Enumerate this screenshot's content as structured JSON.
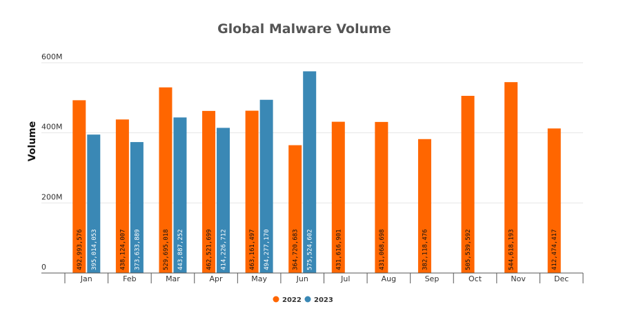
{
  "chart_data": {
    "type": "bar",
    "title": "Global Malware Volume",
    "ylabel": "Volume",
    "xlabel": "",
    "ylim": [
      0,
      600000000
    ],
    "yticks": [
      {
        "value": 0,
        "label": "0"
      },
      {
        "value": 200000000,
        "label": "200M"
      },
      {
        "value": 400000000,
        "label": "400M"
      },
      {
        "value": 600000000,
        "label": "600M"
      }
    ],
    "grid": true,
    "legend_position": "bottom",
    "categories": [
      "Jan",
      "Feb",
      "Mar",
      "Apr",
      "May",
      "Jun",
      "Jul",
      "Aug",
      "Sep",
      "Oct",
      "Nov",
      "Dec"
    ],
    "series": [
      {
        "name": "2022",
        "color": "#ff6600",
        "values": [
          492993576,
          438124007,
          529695018,
          462521699,
          463161497,
          364720683,
          431616901,
          431068698,
          382118476,
          505539592,
          544618193,
          412474417
        ],
        "labels": [
          "492,993,576",
          "438,124,007",
          "529,695,018",
          "462,521,699",
          "463,161,497",
          "364,720,683",
          "431,616,901",
          "431,068,698",
          "382,118,476",
          "505,539,592",
          "544,618,193",
          "412,474,417"
        ]
      },
      {
        "name": "2023",
        "color": "#3a88b5",
        "values": [
          395014053,
          373633889,
          443887252,
          414226712,
          494277170,
          575524602,
          null,
          null,
          null,
          null,
          null,
          null
        ],
        "labels": [
          "395,014,053",
          "373,633,889",
          "443,887,252",
          "414,226,712",
          "494,277,170",
          "575,524,602",
          null,
          null,
          null,
          null,
          null,
          null
        ]
      }
    ]
  }
}
